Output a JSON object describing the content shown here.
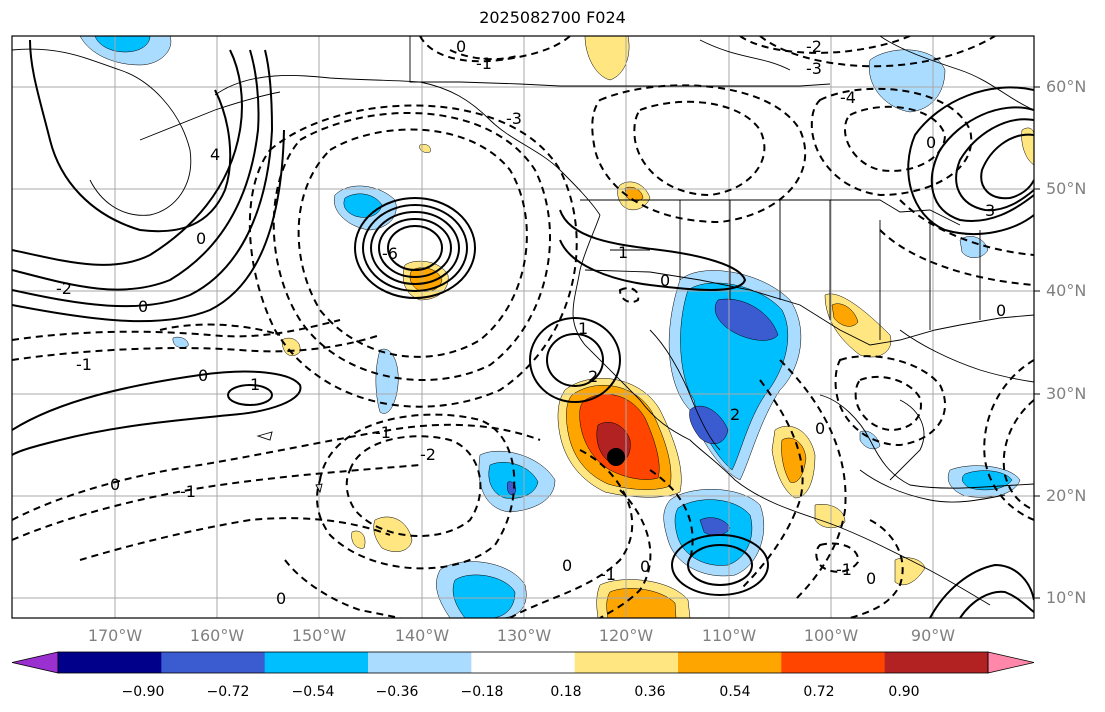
{
  "title": "2025082700 F024",
  "lat_labels": [
    "60°N",
    "50°N",
    "40°N",
    "30°N",
    "20°N",
    "10°N"
  ],
  "lon_labels": [
    "170°W",
    "160°W",
    "150°W",
    "140°W",
    "130°W",
    "120°W",
    "110°W",
    "100°W",
    "90°W"
  ],
  "colorbar": {
    "ticks": [
      "−0.90",
      "−0.72",
      "−0.54",
      "−0.36",
      "−0.18",
      "0.18",
      "0.36",
      "0.54",
      "0.72",
      "0.90"
    ],
    "colors": [
      "#9b30d0",
      "#00008b",
      "#3b5bd0",
      "#00bfff",
      "#aadcff",
      "#ffffff",
      "#ffe680",
      "#ffa500",
      "#ff4500",
      "#b22222",
      "#ff88aa"
    ]
  },
  "contour_labels": [
    "0",
    "1",
    "2",
    "3",
    "4",
    "-1",
    "-2",
    "-3",
    "-4",
    "-6"
  ],
  "shading_colors": {
    "neg_light": "#aadcff",
    "neg_mid": "#00bfff",
    "neg_strong": "#3b5bd0",
    "neg_extreme": "#00008b",
    "pos_light": "#ffe680",
    "pos_mid": "#ffa500",
    "pos_strong": "#ff4500",
    "pos_extreme": "#b22222"
  }
}
